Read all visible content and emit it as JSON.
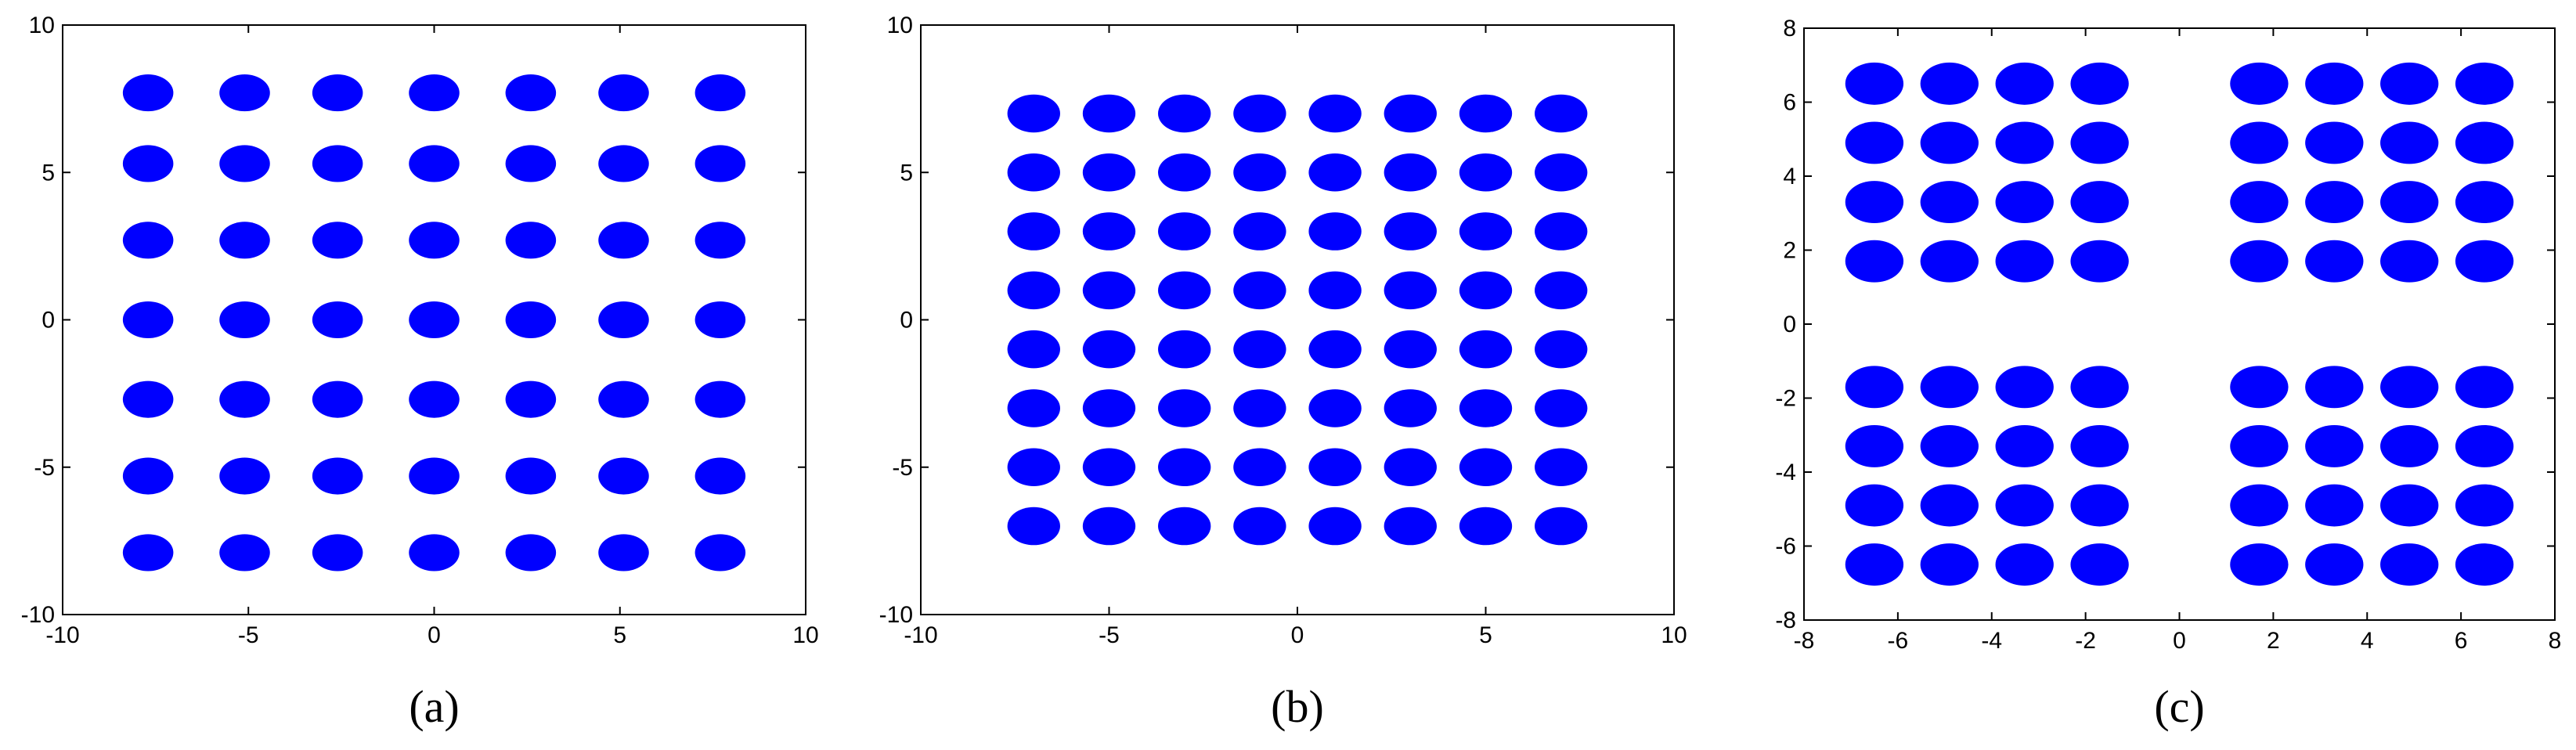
{
  "chart_data": [
    {
      "type": "scatter",
      "caption": "(a)",
      "xlim": [
        -10,
        10
      ],
      "ylim": [
        -10,
        10
      ],
      "xticks": [
        -10,
        -5,
        0,
        5,
        10
      ],
      "yticks": [
        -10,
        -5,
        0,
        5,
        10
      ],
      "series": [
        {
          "color": "#0000ff",
          "x": [
            -7.7,
            -5.1,
            -2.6,
            0,
            2.6,
            5.1,
            7.7,
            -7.7,
            -5.1,
            -2.6,
            0,
            2.6,
            5.1,
            7.7,
            -7.7,
            -5.1,
            -2.6,
            0,
            2.6,
            5.1,
            7.7,
            -7.7,
            -5.1,
            -2.6,
            0,
            2.6,
            5.1,
            7.7,
            -7.7,
            -5.1,
            -2.6,
            0,
            2.6,
            5.1,
            7.7,
            -7.7,
            -5.1,
            -2.6,
            0,
            2.6,
            5.1,
            7.7,
            -7.7,
            -5.1,
            -2.6,
            0,
            2.6,
            5.1,
            7.7
          ],
          "values": [
            7.7,
            7.7,
            7.7,
            7.7,
            7.7,
            7.7,
            7.7,
            5.3,
            5.3,
            5.3,
            5.3,
            5.3,
            5.3,
            5.3,
            2.7,
            2.7,
            2.7,
            2.7,
            2.7,
            2.7,
            2.7,
            0,
            0,
            0,
            0,
            0,
            0,
            0,
            -2.7,
            -2.7,
            -2.7,
            -2.7,
            -2.7,
            -2.7,
            -2.7,
            -5.3,
            -5.3,
            -5.3,
            -5.3,
            -5.3,
            -5.3,
            -5.3,
            -7.9,
            -7.9,
            -7.9,
            -7.9,
            -7.9,
            -7.9,
            -7.9
          ]
        }
      ]
    },
    {
      "type": "scatter",
      "caption": "(b)",
      "xlim": [
        -10,
        10
      ],
      "ylim": [
        -10,
        10
      ],
      "xticks": [
        -10,
        -5,
        0,
        5,
        10
      ],
      "yticks": [
        -10,
        -5,
        0,
        5,
        10
      ],
      "series": [
        {
          "color": "#0000ff",
          "x": [
            -7,
            -5,
            -3,
            -1,
            1,
            3,
            5,
            7,
            -7,
            -5,
            -3,
            -1,
            1,
            3,
            5,
            7,
            -7,
            -5,
            -3,
            -1,
            1,
            3,
            5,
            7,
            -7,
            -5,
            -3,
            -1,
            1,
            3,
            5,
            7,
            -7,
            -5,
            -3,
            -1,
            1,
            3,
            5,
            7,
            -7,
            -5,
            -3,
            -1,
            1,
            3,
            5,
            7,
            -7,
            -5,
            -3,
            -1,
            1,
            3,
            5,
            7,
            -7,
            -5,
            -3,
            -1,
            1,
            3,
            5,
            7
          ],
          "values": [
            7,
            7,
            7,
            7,
            7,
            7,
            7,
            7,
            5,
            5,
            5,
            5,
            5,
            5,
            5,
            5,
            3,
            3,
            3,
            3,
            3,
            3,
            3,
            3,
            1,
            1,
            1,
            1,
            1,
            1,
            1,
            1,
            -1,
            -1,
            -1,
            -1,
            -1,
            -1,
            -1,
            -1,
            -3,
            -3,
            -3,
            -3,
            -3,
            -3,
            -3,
            -3,
            -5,
            -5,
            -5,
            -5,
            -5,
            -5,
            -5,
            -5,
            -7,
            -7,
            -7,
            -7,
            -7,
            -7,
            -7,
            -7
          ]
        }
      ]
    },
    {
      "type": "scatter",
      "caption": "(c)",
      "xlim": [
        -8,
        8
      ],
      "ylim": [
        -8,
        8
      ],
      "xticks": [
        -8,
        -6,
        -4,
        -2,
        0,
        2,
        4,
        6,
        8
      ],
      "yticks": [
        -8,
        -6,
        -4,
        -2,
        0,
        2,
        4,
        6,
        8
      ],
      "series": [
        {
          "color": "#0000ff",
          "x": [
            -6.5,
            -4.9,
            -3.3,
            -1.7,
            1.7,
            3.3,
            4.9,
            6.5,
            -6.5,
            -4.9,
            -3.3,
            -1.7,
            1.7,
            3.3,
            4.9,
            6.5,
            -6.5,
            -4.9,
            -3.3,
            -1.7,
            1.7,
            3.3,
            4.9,
            6.5,
            -6.5,
            -4.9,
            -3.3,
            -1.7,
            1.7,
            3.3,
            4.9,
            6.5,
            -6.5,
            -4.9,
            -3.3,
            -1.7,
            1.7,
            3.3,
            4.9,
            6.5,
            -6.5,
            -4.9,
            -3.3,
            -1.7,
            1.7,
            3.3,
            4.9,
            6.5,
            -6.5,
            -4.9,
            -3.3,
            -1.7,
            1.7,
            3.3,
            4.9,
            6.5,
            -6.5,
            -4.9,
            -3.3,
            -1.7,
            1.7,
            3.3,
            4.9,
            6.5
          ],
          "values": [
            6.5,
            6.5,
            6.5,
            6.5,
            6.5,
            6.5,
            6.5,
            6.5,
            4.9,
            4.9,
            4.9,
            4.9,
            4.9,
            4.9,
            4.9,
            4.9,
            3.3,
            3.3,
            3.3,
            3.3,
            3.3,
            3.3,
            3.3,
            3.3,
            1.7,
            1.7,
            1.7,
            1.7,
            1.7,
            1.7,
            1.7,
            1.7,
            -1.7,
            -1.7,
            -1.7,
            -1.7,
            -1.7,
            -1.7,
            -1.7,
            -1.7,
            -3.3,
            -3.3,
            -3.3,
            -3.3,
            -3.3,
            -3.3,
            -3.3,
            -3.3,
            -4.9,
            -4.9,
            -4.9,
            -4.9,
            -4.9,
            -4.9,
            -4.9,
            -4.9,
            -6.5,
            -6.5,
            -6.5,
            -6.5,
            -6.5,
            -6.5,
            -6.5,
            -6.5
          ]
        }
      ]
    }
  ]
}
